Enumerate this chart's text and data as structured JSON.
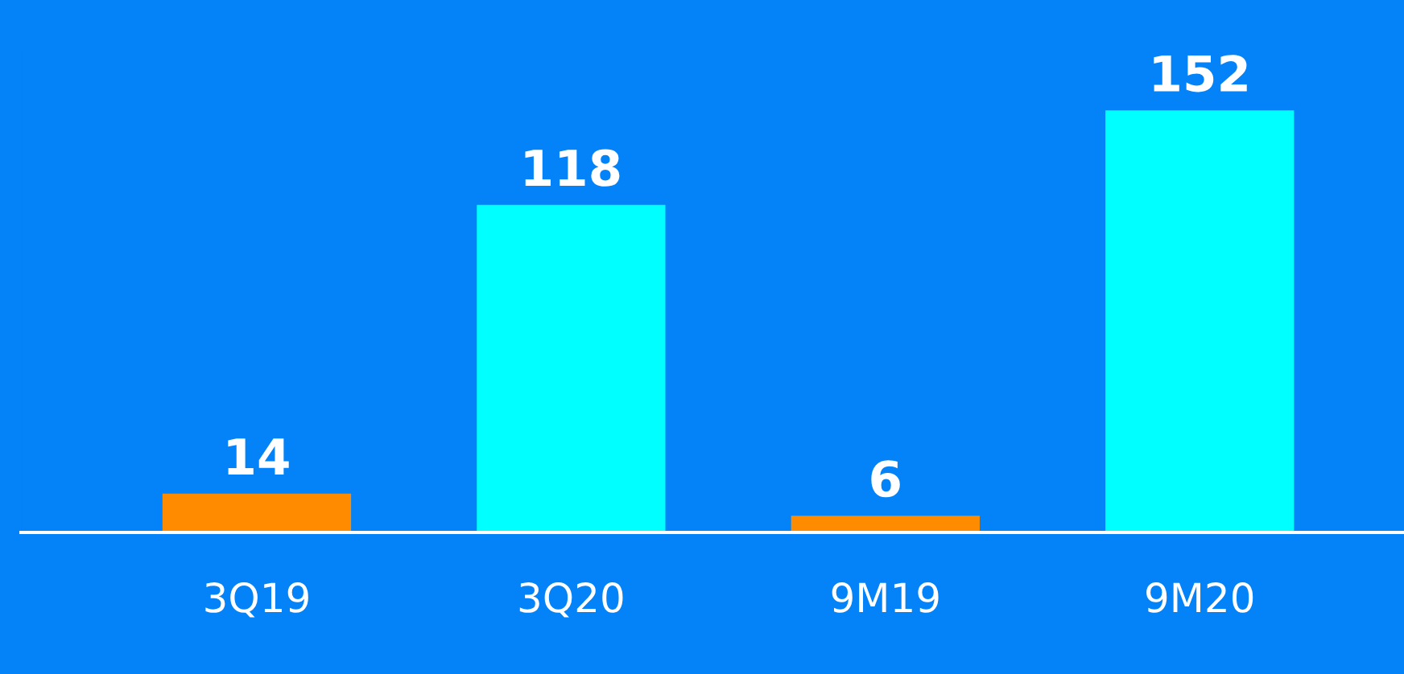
{
  "chart_data": {
    "type": "bar",
    "categories": [
      "3Q19",
      "3Q20",
      "9M19",
      "9M20"
    ],
    "values": [
      14,
      118,
      6,
      152
    ],
    "colors": [
      "#ff8c00",
      "#00ffff",
      "#ff8c00",
      "#00ffff"
    ],
    "data_labels": true
  }
}
